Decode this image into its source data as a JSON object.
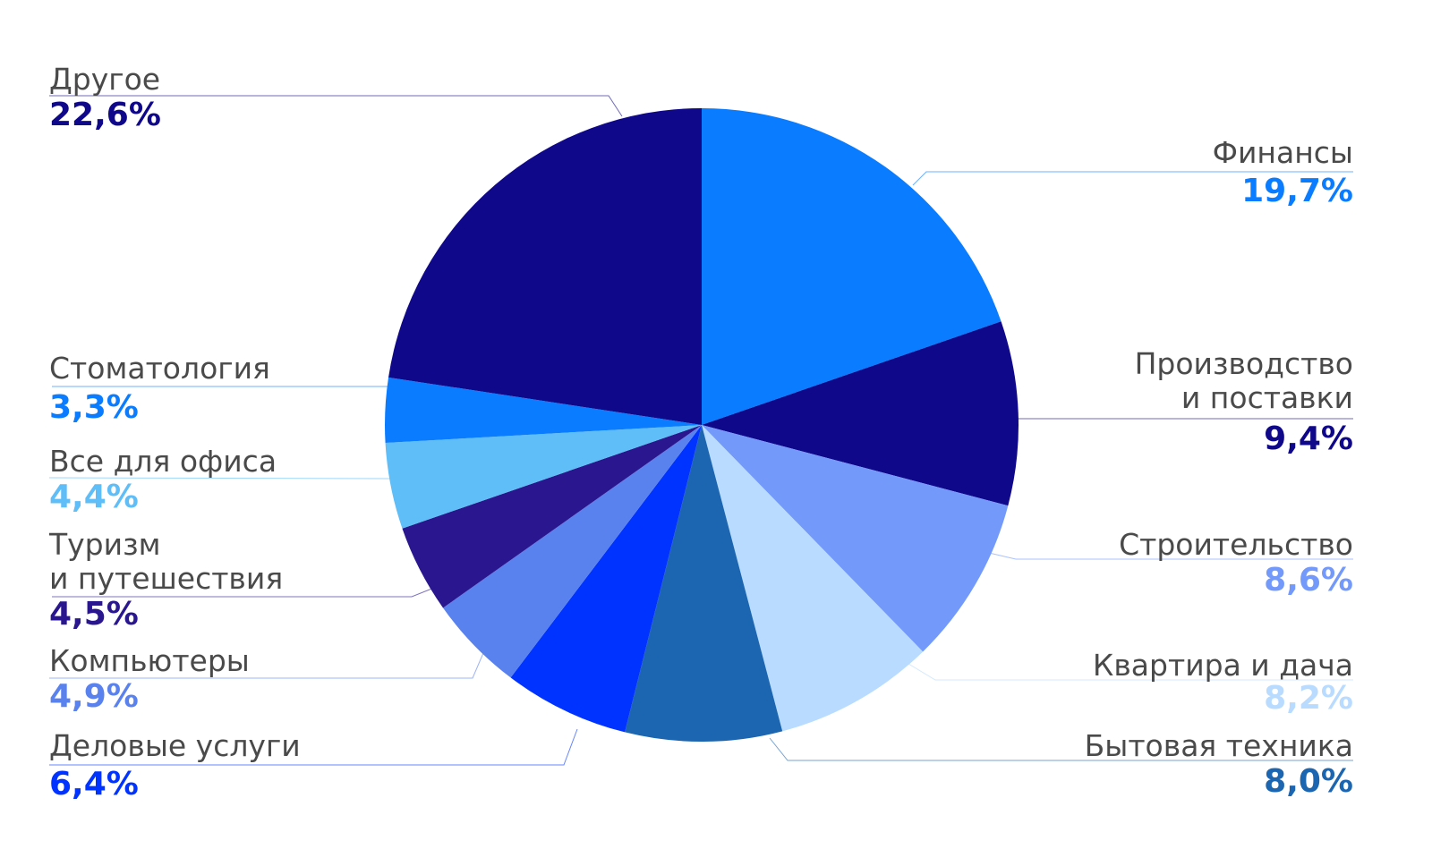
{
  "chart_data": {
    "type": "pie",
    "categories": [
      "Финансы",
      "Производство\nи поставки",
      "Строительство",
      "Квартира и дача",
      "Бытовая техника",
      "Деловые услуги",
      "Компьютеры",
      "Туризм\nи путешествия",
      "Все для офиса",
      "Стоматология",
      "Другое"
    ],
    "values": [
      19.7,
      9.4,
      8.6,
      8.2,
      8.0,
      6.4,
      4.9,
      4.5,
      4.4,
      3.3,
      22.6
    ],
    "value_labels": [
      "19,7%",
      "9,4%",
      "8,6%",
      "8,2%",
      "8,0%",
      "6,4%",
      "4,9%",
      "4,5%",
      "4,4%",
      "3,3%",
      "22,6%"
    ],
    "colors": [
      "#0a7cff",
      "#10088a",
      "#7399fb",
      "#b8dbff",
      "#1c65b0",
      "#0033ff",
      "#5a82ee",
      "#2a168f",
      "#5fbdf7",
      "#0a7cff",
      "#10088a"
    ]
  }
}
